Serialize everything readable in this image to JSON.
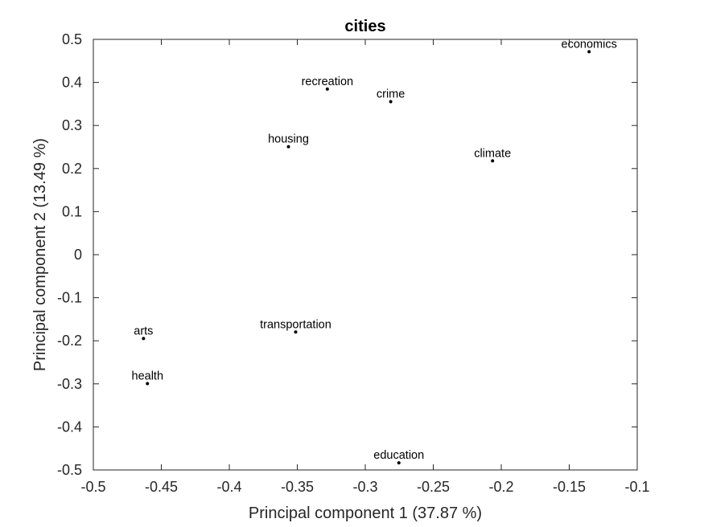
{
  "chart_data": {
    "type": "scatter",
    "title": "cities",
    "xlabel": "Principal component 1 (37.87 %)",
    "ylabel": "Principal component 2 (13.49 %)",
    "xlim": [
      -0.5,
      -0.1
    ],
    "ylim": [
      -0.5,
      0.5
    ],
    "xticks": [
      -0.5,
      -0.45,
      -0.4,
      -0.35,
      -0.3,
      -0.25,
      -0.2,
      -0.15,
      -0.1
    ],
    "xtick_labels": [
      "-0.5",
      "-0.45",
      "-0.4",
      "-0.35",
      "-0.3",
      "-0.25",
      "-0.2",
      "-0.15",
      "-0.1"
    ],
    "yticks": [
      0.5,
      0.4,
      0.3,
      0.2,
      0.1,
      0,
      -0.1,
      -0.2,
      -0.3,
      -0.4,
      -0.5
    ],
    "ytick_labels": [
      "0.5",
      "0.4",
      "0.3",
      "0.2",
      "0.1",
      "0",
      "-0.1",
      "-0.2",
      "-0.3",
      "-0.4",
      "-0.5"
    ],
    "grid": false,
    "points": [
      {
        "label": "climate",
        "x": -0.2064,
        "y": 0.2178
      },
      {
        "label": "housing",
        "x": -0.3565,
        "y": 0.2506
      },
      {
        "label": "health",
        "x": -0.4602,
        "y": -0.2995
      },
      {
        "label": "crime",
        "x": -0.2813,
        "y": 0.3553
      },
      {
        "label": "transportation",
        "x": -0.3512,
        "y": -0.1796
      },
      {
        "label": "education",
        "x": -0.2753,
        "y": -0.4834
      },
      {
        "label": "arts",
        "x": -0.4631,
        "y": -0.1948
      },
      {
        "label": "recreation",
        "x": -0.3279,
        "y": 0.3845
      },
      {
        "label": "economics",
        "x": -0.1354,
        "y": 0.4713
      }
    ],
    "marker_color": "#000000"
  }
}
